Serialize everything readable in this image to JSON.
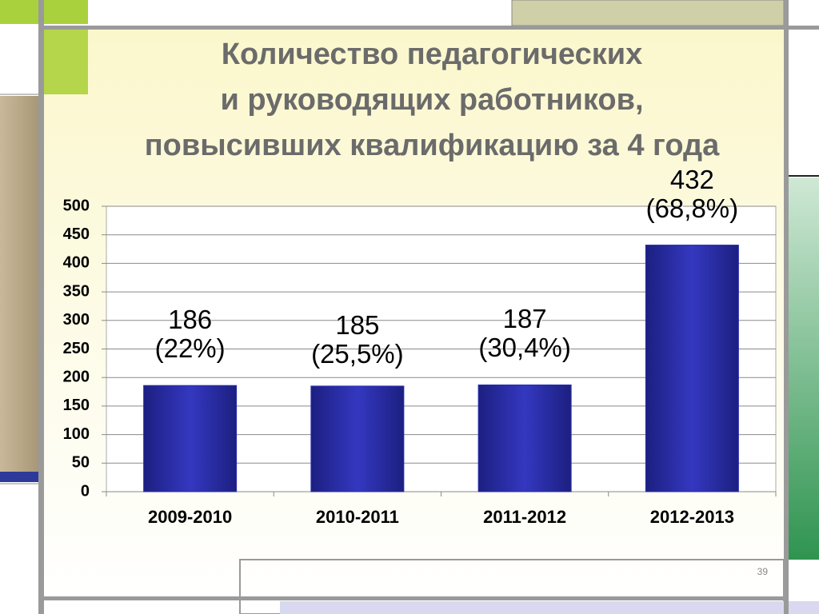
{
  "chart_data": {
    "type": "bar",
    "title": "Количество педагогических\nи руководящих работников,\nповысивших квалификацию за 4 года",
    "categories": [
      "2009-2010",
      "2010-2011",
      "2011-2012",
      "2012-2013"
    ],
    "values": [
      186,
      185,
      187,
      432
    ],
    "value_labels": [
      "186\n(22%)",
      "185\n(25,5%)",
      "187\n(30,4%)",
      "432\n(68,8%)"
    ],
    "color": "#2b2fae",
    "ylim": [
      0,
      500
    ],
    "yticks": [
      0,
      50,
      100,
      150,
      200,
      250,
      300,
      350,
      400,
      450,
      500
    ],
    "grid": true
  },
  "page_number": "39"
}
